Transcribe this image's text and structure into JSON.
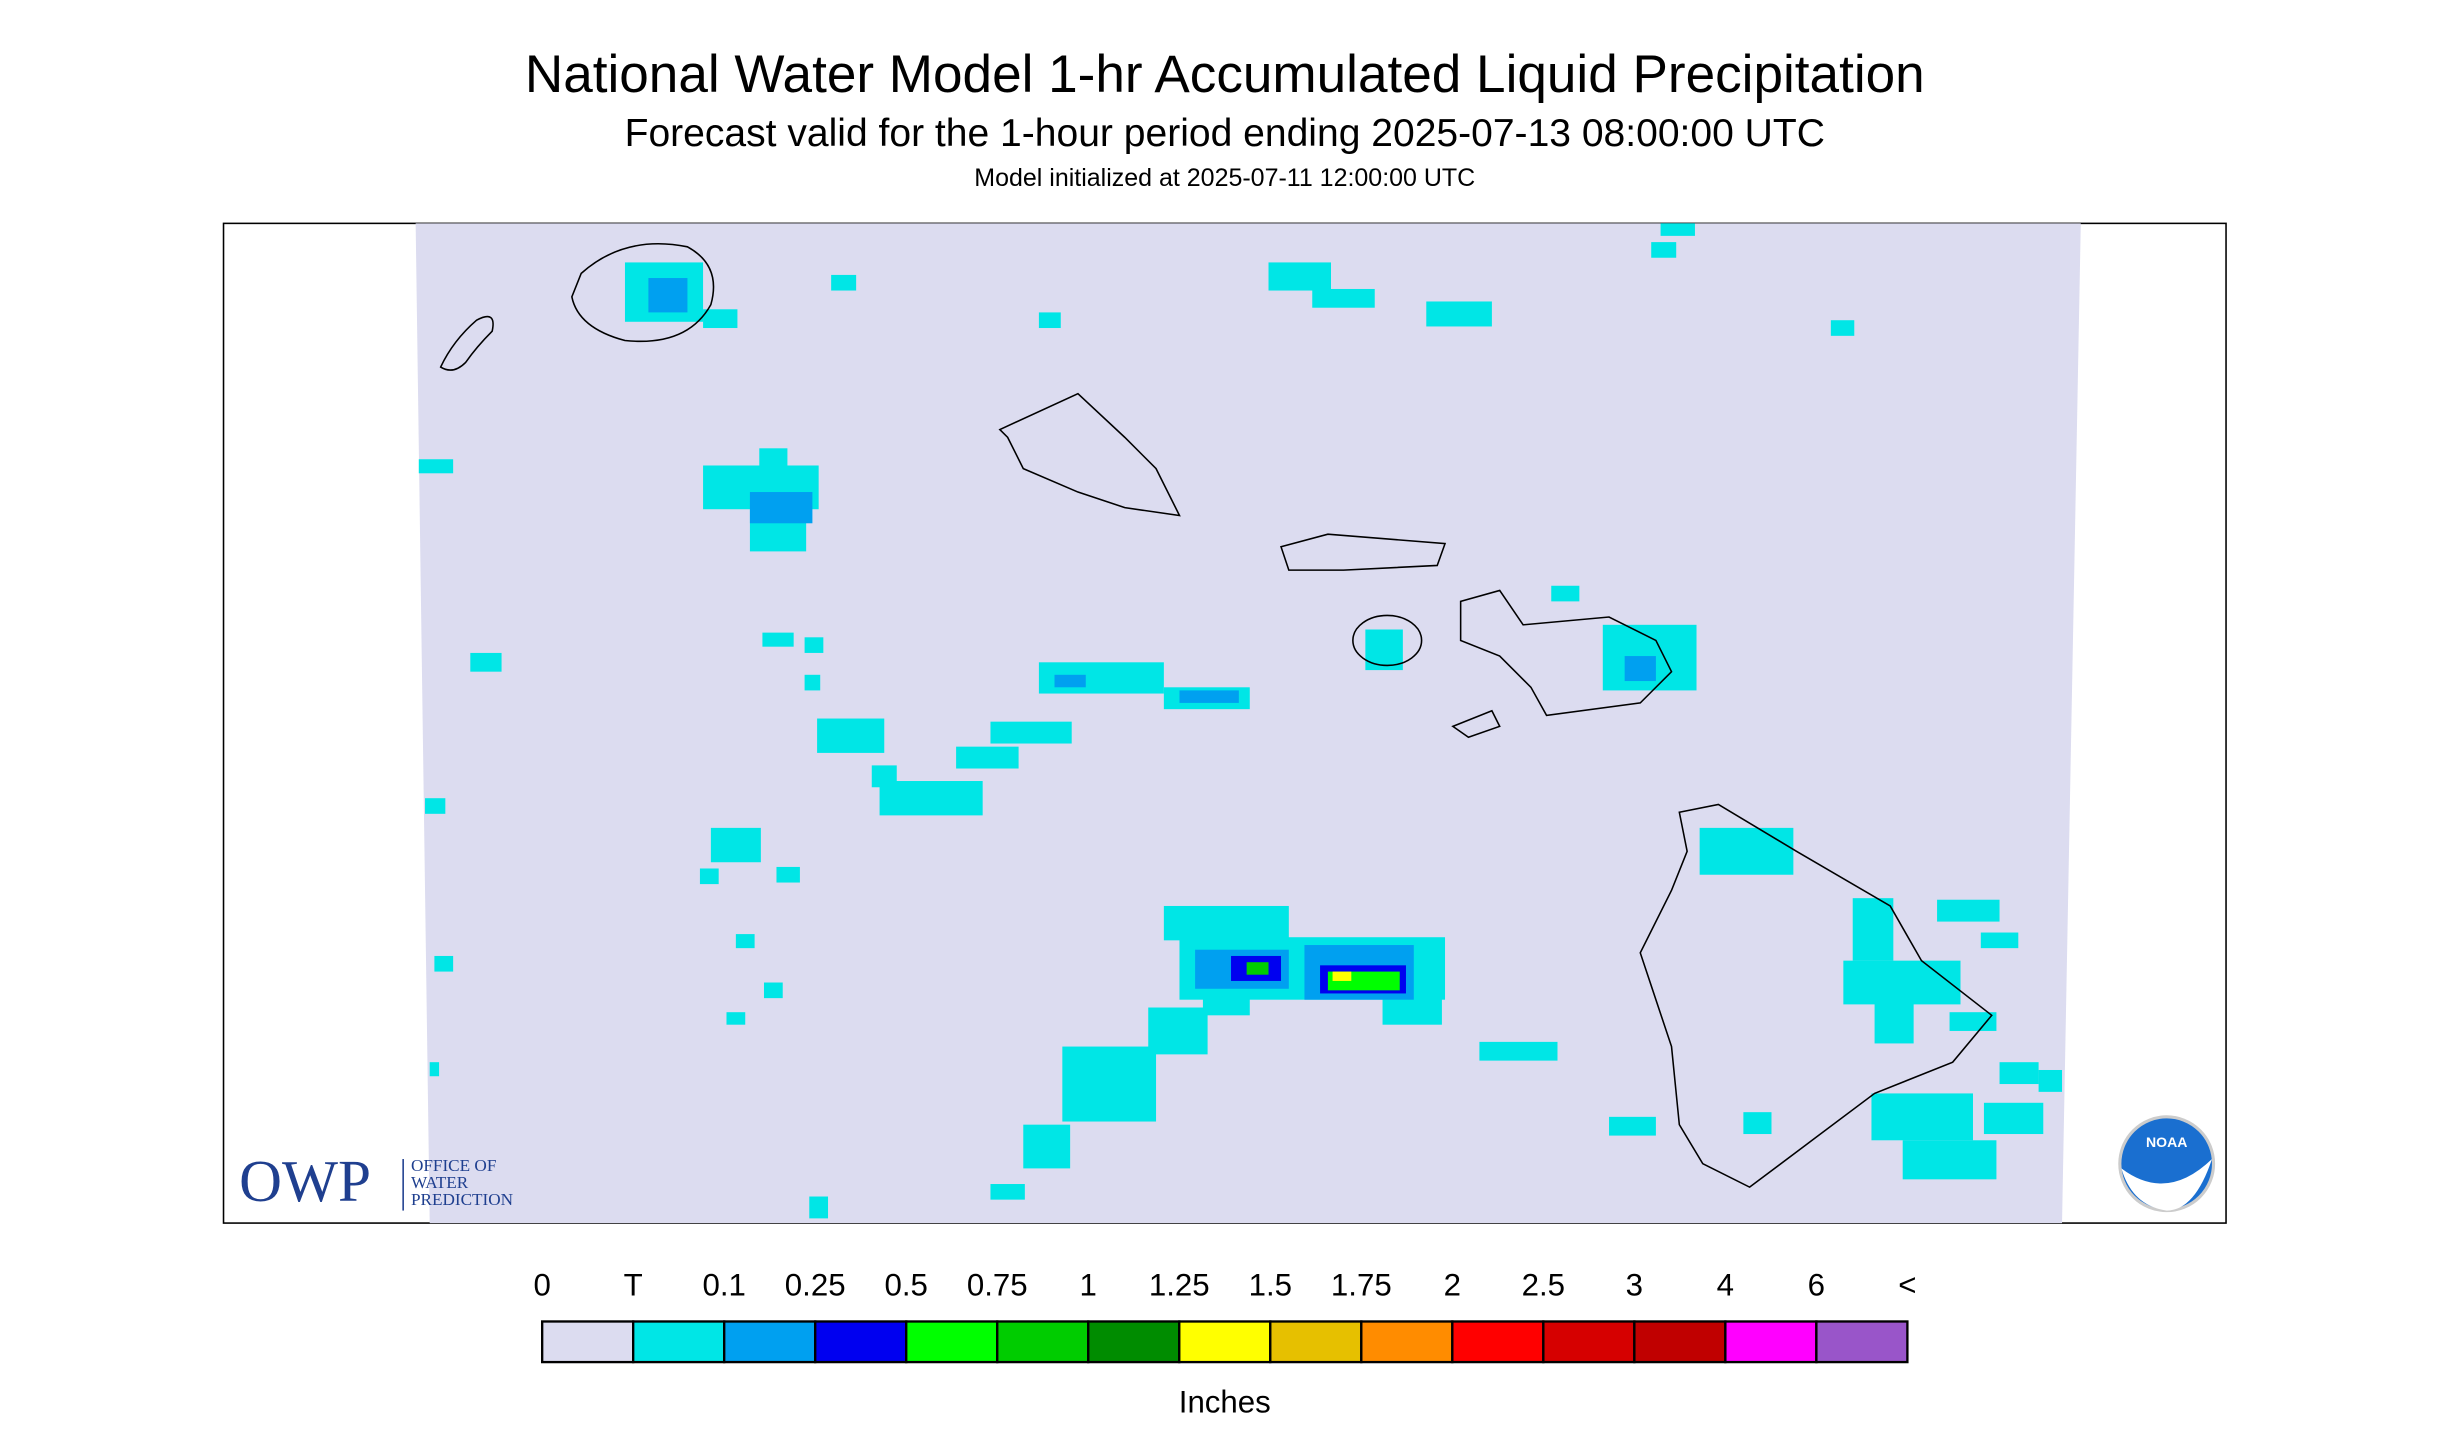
{
  "header": {
    "title": "National Water Model 1-hr Accumulated Liquid Precipitation",
    "subtitle": "Forecast valid for the 1-hour period ending 2025-07-13 08:00:00 UTC",
    "init": "Model initialized at 2025-07-11 12:00:00 UTC"
  },
  "logos": {
    "owp": "OWP",
    "owp_lines": [
      "OFFICE OF",
      "WATER",
      "PREDICTION"
    ],
    "noaa": "NOAA"
  },
  "legend": {
    "unit": "Inches",
    "end_label": "<",
    "bins": [
      {
        "label": "0",
        "color": "#dcdcf0"
      },
      {
        "label": "T",
        "color": "#00e6e6"
      },
      {
        "label": "0.1",
        "color": "#00a0f0"
      },
      {
        "label": "0.25",
        "color": "#0000f0"
      },
      {
        "label": "0.5",
        "color": "#00ff00"
      },
      {
        "label": "0.75",
        "color": "#00cc00"
      },
      {
        "label": "1",
        "color": "#008c00"
      },
      {
        "label": "1.25",
        "color": "#ffff00"
      },
      {
        "label": "1.5",
        "color": "#e6c000"
      },
      {
        "label": "1.75",
        "color": "#ff8c00"
      },
      {
        "label": "2",
        "color": "#ff0000"
      },
      {
        "label": "2.5",
        "color": "#d60000"
      },
      {
        "label": "3",
        "color": "#c00000"
      },
      {
        "label": "4",
        "color": "#ff00ff"
      },
      {
        "label": "6",
        "color": "#9955c9"
      }
    ]
  }
}
